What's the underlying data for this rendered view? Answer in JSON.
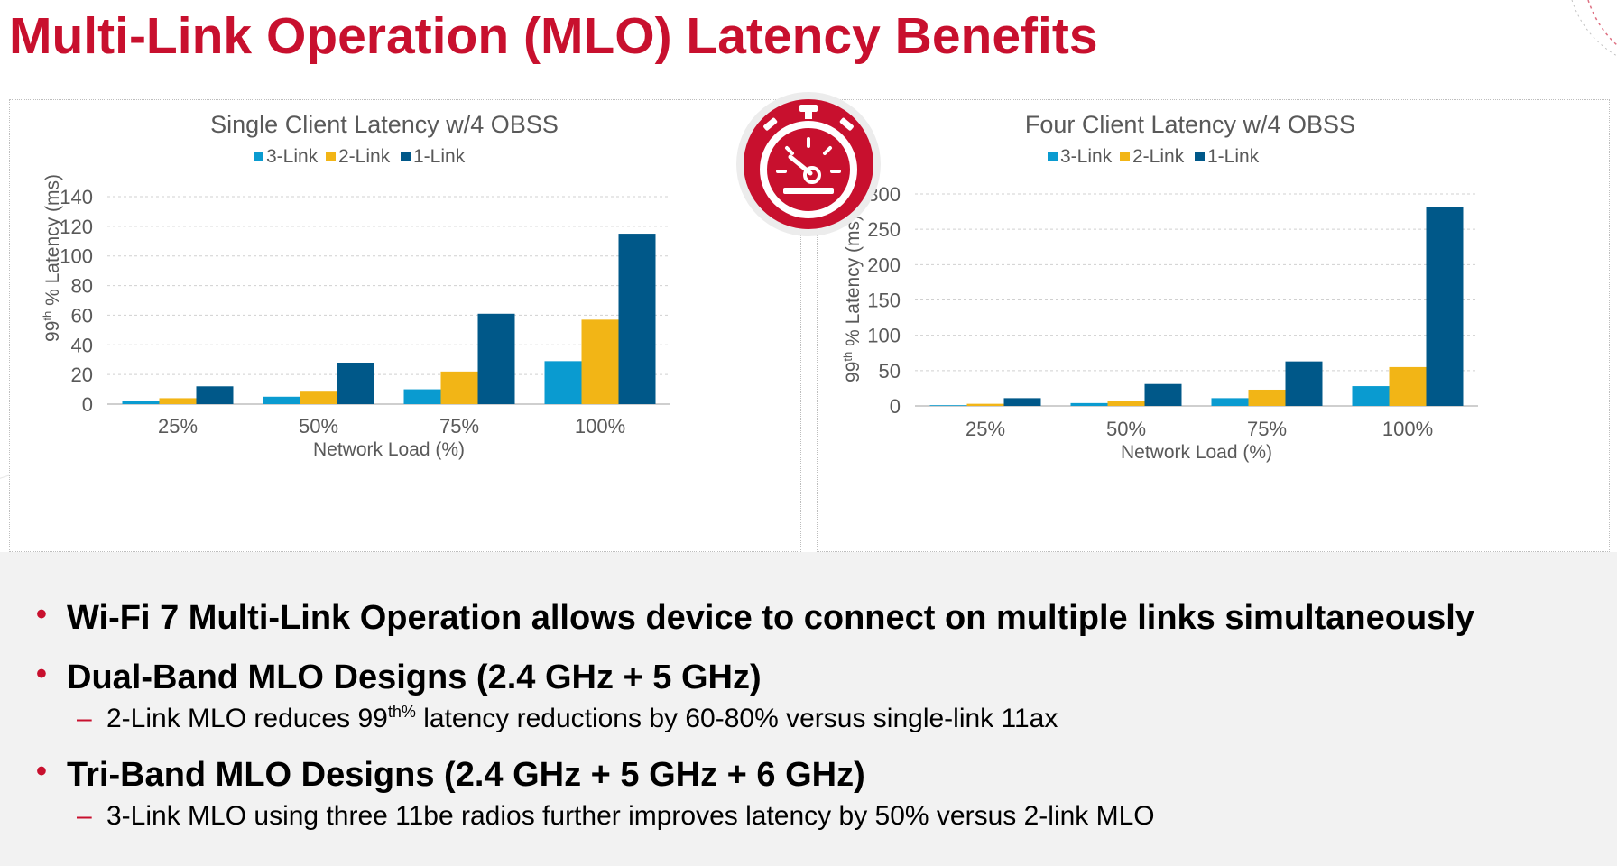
{
  "slide": {
    "title": "Multi-Link Operation (MLO) Latency Benefits"
  },
  "colors": {
    "accent": "#C8102E",
    "series_3_link": "#0A9BD0",
    "series_2_link": "#F2B516",
    "series_1_link": "#005889",
    "bottom_background": "#f2f2f2"
  },
  "icons": {
    "badge": "stopwatch-speedometer-icon"
  },
  "chart_data": [
    {
      "type": "bar",
      "title": "Single Client Latency w/4 OBSS",
      "xlabel": "Network Load (%)",
      "ylabel_main": "99",
      "ylabel_sup": "th",
      "ylabel_rest": " % Latency (ms)",
      "categories": [
        "25%",
        "50%",
        "75%",
        "100%"
      ],
      "yticks": [
        "0",
        "20",
        "40",
        "60",
        "80",
        "100",
        "120",
        "140"
      ],
      "ylim": [
        0,
        140
      ],
      "grid": true,
      "legend_position": "top-center",
      "series": [
        {
          "name": "3-Link",
          "values": [
            2,
            5,
            10,
            29
          ]
        },
        {
          "name": "2-Link",
          "values": [
            4,
            9,
            22,
            57
          ]
        },
        {
          "name": "1-Link",
          "values": [
            12,
            28,
            61,
            115
          ]
        }
      ]
    },
    {
      "type": "bar",
      "title": "Four Client Latency w/4 OBSS",
      "xlabel": "Network Load (%)",
      "ylabel_main": "99",
      "ylabel_sup": "th",
      "ylabel_rest": " % Latency (ms)",
      "categories": [
        "25%",
        "50%",
        "75%",
        "100%"
      ],
      "yticks": [
        "0",
        "50",
        "100",
        "150",
        "200",
        "250",
        "300"
      ],
      "ylim": [
        0,
        300
      ],
      "grid": true,
      "legend_position": "top-center",
      "series": [
        {
          "name": "3-Link",
          "values": [
            1,
            4,
            11,
            28
          ]
        },
        {
          "name": "2-Link",
          "values": [
            3,
            7,
            23,
            55
          ]
        },
        {
          "name": "1-Link",
          "values": [
            11,
            31,
            63,
            282
          ]
        }
      ]
    }
  ],
  "bullets": [
    {
      "text": "Wi-Fi 7 Multi-Link Operation allows device to connect on multiple links simultaneously"
    },
    {
      "text": "Dual-Band MLO Designs (2.4 GHz + 5 GHz)"
    },
    {
      "text": "Tri-Band MLO Designs (2.4 GHz + 5 GHz + 6 GHz)"
    }
  ],
  "subbullets": [
    {
      "pre": "2-Link MLO reduces 99",
      "sup": "th%",
      "post": " latency reductions by 60-80% versus single-link 11ax"
    },
    {
      "text": "3-Link MLO using three 11be radios further improves latency by 50% versus 2-link MLO"
    }
  ]
}
